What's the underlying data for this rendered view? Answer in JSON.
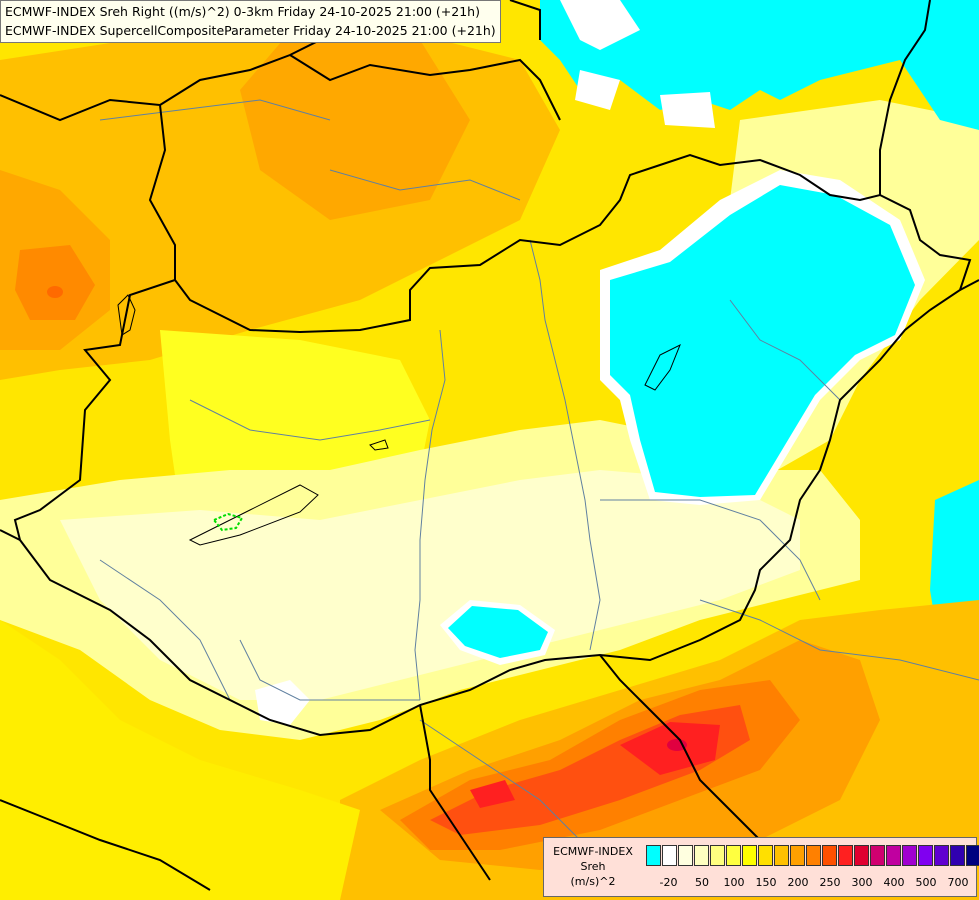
{
  "title": {
    "line1": "ECMWF-INDEX Sreh Right ((m/s)^2) 0-3km Friday 24-10-2025 21:00 (+21h)",
    "line2": "ECMWF-INDEX SupercellCompositeParameter Friday 24-10-2025 21:00 (+21h)"
  },
  "legend": {
    "line1": "ECMWF-INDEX",
    "line2": "Sreh",
    "line3": "(m/s)^2",
    "colors": [
      "#00ffff",
      "#ffffff",
      "#ffffe0",
      "#ffffc0",
      "#ffff80",
      "#ffff40",
      "#ffff00",
      "#ffe000",
      "#ffc000",
      "#ffa000",
      "#ff8000",
      "#ff5000",
      "#ff2020",
      "#e00030",
      "#d00070",
      "#c000a0",
      "#a000d0",
      "#8000f0",
      "#6000d0",
      "#3000b0",
      "#000080"
    ],
    "ticks": [
      {
        "label": "-20",
        "index": 1
      },
      {
        "label": "50",
        "index": 3
      },
      {
        "label": "100",
        "index": 5
      },
      {
        "label": "150",
        "index": 7
      },
      {
        "label": "200",
        "index": 9
      },
      {
        "label": "250",
        "index": 11
      },
      {
        "label": "300",
        "index": 13
      },
      {
        "label": "400",
        "index": 15
      },
      {
        "label": "500",
        "index": 17
      },
      {
        "label": "700",
        "index": 19
      }
    ]
  },
  "map_colors": {
    "cyan": "#00ffff",
    "white": "#ffffff",
    "pale": "#ffffcc",
    "lightyellow": "#ffff99",
    "yellow": "#ffff33",
    "gold": "#ffdd00",
    "orange_light": "#ffc000",
    "orange": "#ffa000",
    "orange_dark": "#ff7000",
    "red": "#ff3020",
    "crimson": "#e00040",
    "border": "#000000",
    "river": "#6080a0",
    "lake_marker": "#00dd00"
  }
}
